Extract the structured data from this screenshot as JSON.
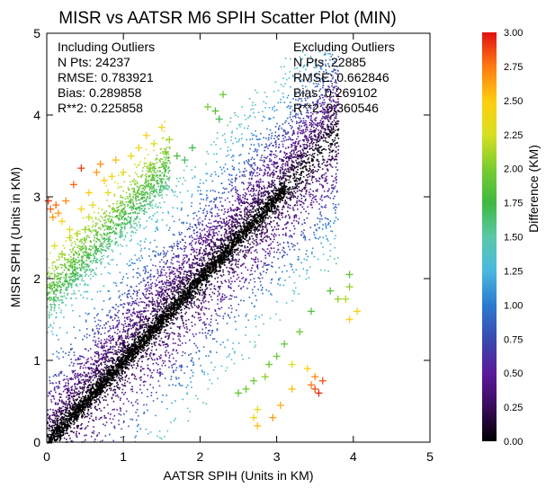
{
  "chart_data": {
    "type": "scatter",
    "title": "MISR vs AATSR M6 SPIH Scatter Plot (MIN)",
    "xlabel": "AATSR SPIH (Units in KM)",
    "ylabel": "MISR SPIH (Units in KM)",
    "xlim": [
      0,
      5
    ],
    "ylim": [
      0,
      5
    ],
    "x_ticks": [
      "0",
      "1",
      "2",
      "3",
      "4",
      "5"
    ],
    "y_ticks": [
      "0",
      "1",
      "2",
      "3",
      "4",
      "5"
    ],
    "grid": false,
    "stats": {
      "left": {
        "heading": "Including Outliers",
        "lines": [
          "N Pts: 24237",
          "RMSE: 0.783921",
          "Bias: 0.289858",
          "R**2: 0.225858"
        ]
      },
      "right": {
        "heading": "Excluding Outliers",
        "lines": [
          "N Pts: 22885",
          "RMSE: 0.662846",
          "Bias: 0.269102",
          "R**2: 0.360546"
        ]
      }
    },
    "colorbar": {
      "label": "Difference (KM)",
      "range": [
        0,
        3
      ],
      "tick_labels": [
        "3.00",
        "2.75",
        "2.50",
        "2.25",
        "2.00",
        "1.75",
        "1.50",
        "1.25",
        "1.00",
        "0.75",
        "0.50",
        "0.25",
        "0.00"
      ],
      "tick_values": [
        3.0,
        2.75,
        2.5,
        2.25,
        2.0,
        1.75,
        1.5,
        1.25,
        1.0,
        0.75,
        0.5,
        0.25,
        0.0
      ],
      "colors": [
        "#000000",
        "#3a0a5c",
        "#5a1a9a",
        "#3a4ab0",
        "#2a7ad0",
        "#4ab8e0",
        "#5ac8a8",
        "#40b840",
        "#7acc30",
        "#d8e020",
        "#ffcc10",
        "#ff7a10",
        "#e01010"
      ]
    },
    "outliers_above": [
      [
        0.02,
        2.95
      ],
      [
        0.05,
        2.85
      ],
      [
        0.08,
        2.75
      ],
      [
        0.12,
        2.9
      ],
      [
        0.15,
        2.8
      ],
      [
        0.2,
        2.7
      ],
      [
        0.25,
        2.95
      ],
      [
        0.3,
        2.6
      ],
      [
        0.35,
        3.15
      ],
      [
        0.45,
        3.35
      ],
      [
        0.55,
        3.05
      ],
      [
        0.6,
        2.9
      ],
      [
        0.65,
        3.3
      ],
      [
        0.7,
        3.4
      ],
      [
        0.75,
        3.2
      ],
      [
        0.8,
        3.05
      ],
      [
        0.85,
        3.25
      ],
      [
        0.9,
        3.45
      ],
      [
        1.0,
        3.3
      ],
      [
        1.1,
        3.5
      ],
      [
        1.2,
        3.6
      ],
      [
        1.3,
        3.75
      ],
      [
        1.4,
        3.65
      ],
      [
        1.5,
        3.85
      ],
      [
        1.55,
        3.55
      ],
      [
        1.6,
        3.7
      ],
      [
        1.35,
        3.35
      ],
      [
        1.7,
        3.5
      ],
      [
        1.8,
        3.45
      ],
      [
        1.9,
        3.6
      ],
      [
        2.1,
        4.1
      ],
      [
        2.2,
        4.05
      ],
      [
        2.3,
        4.25
      ],
      [
        2.25,
        3.95
      ],
      [
        0.1,
        2.4
      ],
      [
        0.2,
        2.3
      ],
      [
        0.3,
        2.5
      ],
      [
        0.4,
        2.55
      ],
      [
        0.5,
        2.6
      ],
      [
        0.55,
        2.75
      ],
      [
        0.45,
        2.85
      ]
    ],
    "outliers_below": [
      [
        3.95,
        2.05
      ],
      [
        3.95,
        1.9
      ],
      [
        3.9,
        1.75
      ],
      [
        3.95,
        1.5
      ],
      [
        4.05,
        1.6
      ],
      [
        3.7,
        1.85
      ],
      [
        3.8,
        1.75
      ],
      [
        3.45,
        1.6
      ],
      [
        3.3,
        1.35
      ],
      [
        3.1,
        1.2
      ],
      [
        3.0,
        1.05
      ],
      [
        2.9,
        0.95
      ],
      [
        3.2,
        0.95
      ],
      [
        2.85,
        0.8
      ],
      [
        2.7,
        0.75
      ],
      [
        3.4,
        0.9
      ],
      [
        3.5,
        0.8
      ],
      [
        2.6,
        0.65
      ],
      [
        2.5,
        0.6
      ],
      [
        3.5,
        0.65
      ],
      [
        3.55,
        0.6
      ],
      [
        3.45,
        0.7
      ],
      [
        3.6,
        0.75
      ],
      [
        3.2,
        0.65
      ],
      [
        2.75,
        0.4
      ],
      [
        2.7,
        0.3
      ],
      [
        2.75,
        0.2
      ],
      [
        3.05,
        0.45
      ],
      [
        2.95,
        0.3
      ]
    ]
  }
}
